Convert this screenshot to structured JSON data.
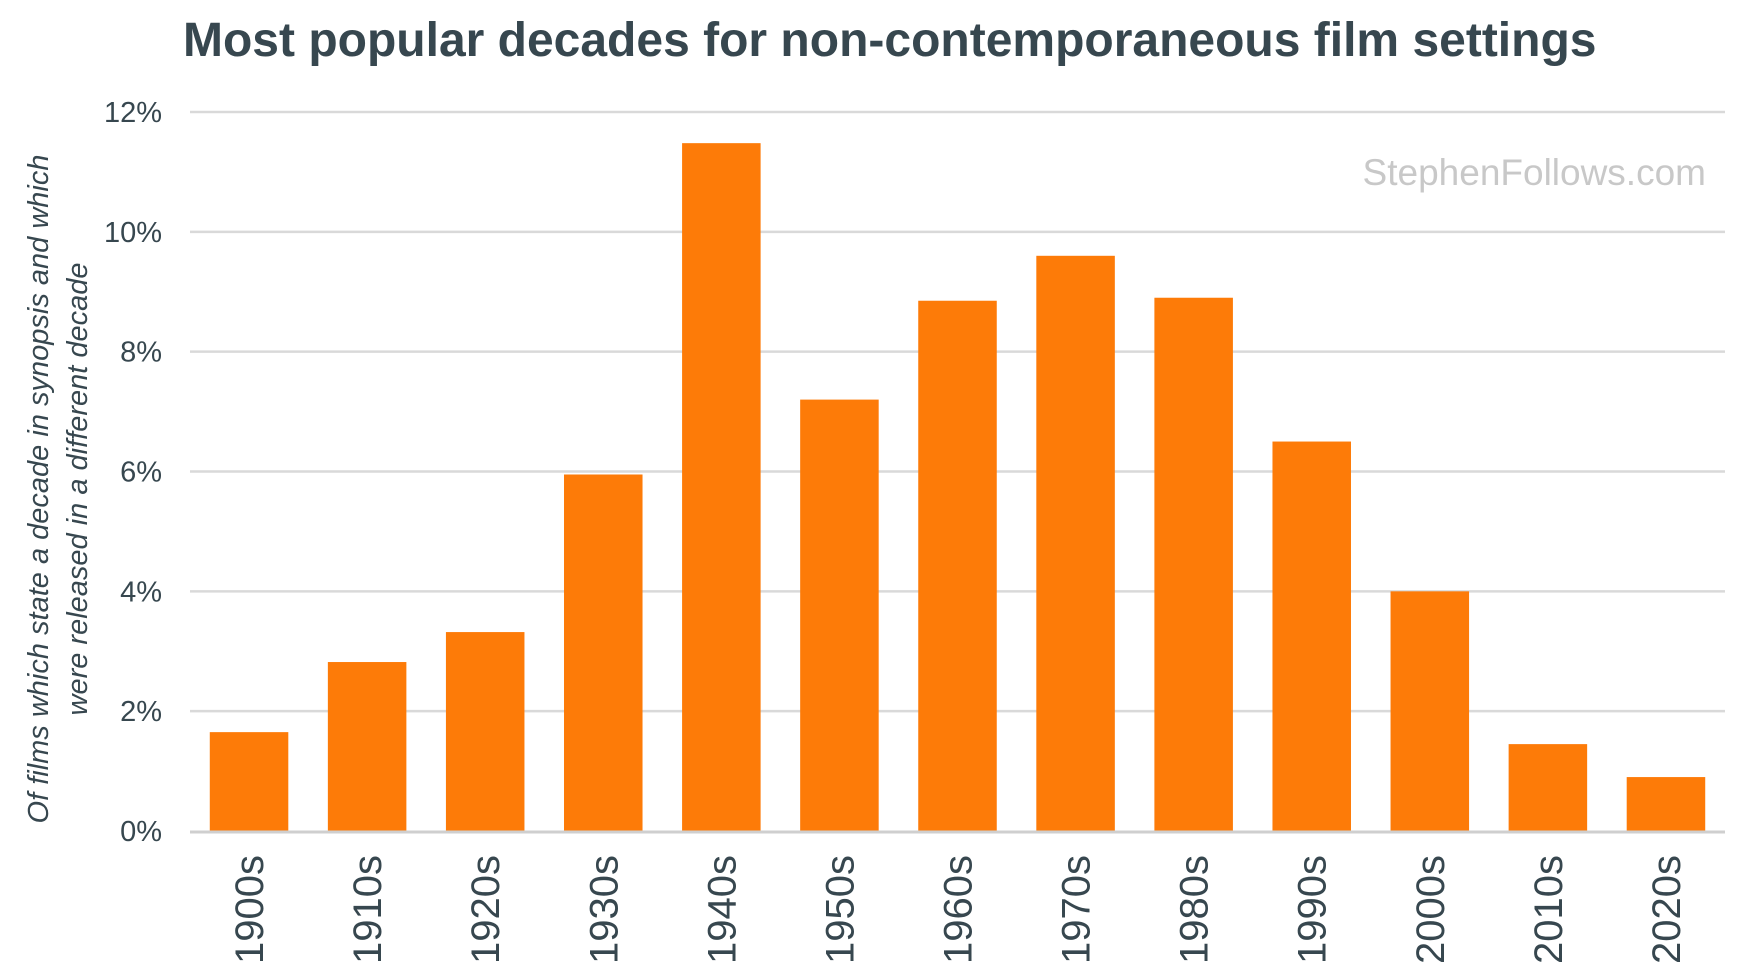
{
  "chart_data": {
    "type": "bar",
    "title": "Most popular decades for non-contemporaneous film settings",
    "ylabel_lines": [
      "Of films which state a decade in synopsis and which",
      "were released in a different decade"
    ],
    "xlabel": "",
    "categories": [
      "1900s",
      "1910s",
      "1920s",
      "1930s",
      "1940s",
      "1950s",
      "1960s",
      "1970s",
      "1980s",
      "1990s",
      "2000s",
      "2010s",
      "2020s"
    ],
    "values": [
      1.65,
      2.82,
      3.32,
      5.95,
      11.48,
      7.2,
      8.85,
      9.6,
      8.9,
      6.5,
      4.0,
      1.45,
      0.9
    ],
    "ylim": [
      0,
      12
    ],
    "yticks": [
      0,
      2,
      4,
      6,
      8,
      10,
      12
    ],
    "ytick_labels": [
      "0%",
      "2%",
      "4%",
      "6%",
      "8%",
      "10%",
      "12%"
    ],
    "grid": true,
    "bar_color": "#fd7b08",
    "watermark": "StephenFollows.com"
  }
}
